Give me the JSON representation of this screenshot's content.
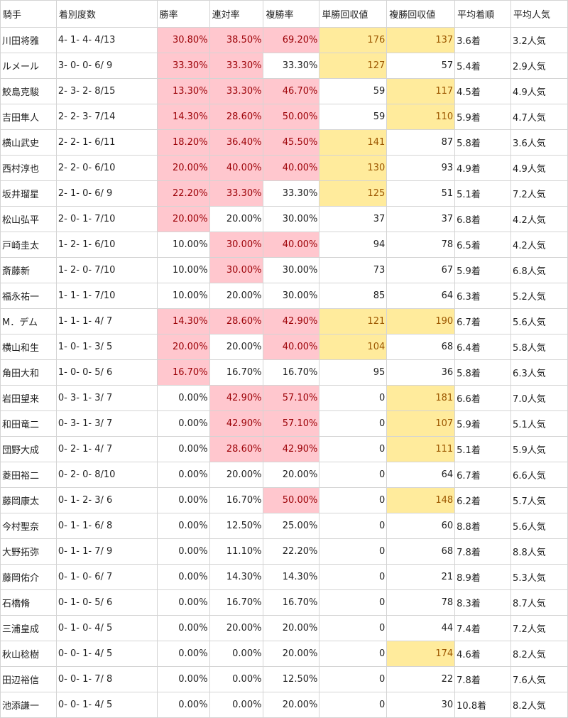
{
  "headers": [
    "騎手",
    "着別度数",
    "勝率",
    "連対率",
    "複勝率",
    "単勝回収値",
    "複勝回収値",
    "平均着順",
    "平均人気"
  ],
  "colors": {
    "pink_fill": "#ffc7ce",
    "pink_text": "#9c0006",
    "yellow_fill": "#ffeb9c",
    "yellow_text": "#9c5700"
  },
  "rows": [
    {
      "jockey": "川田将雅",
      "record": "4- 1- 4- 4/13",
      "win": "30.80%",
      "place2": "38.50%",
      "place3": "69.20%",
      "win_ret": "176",
      "show_ret": "137",
      "avg_finish": "3.6着",
      "avg_pop": "3.2人気",
      "hl": {
        "win": "pink",
        "place2": "pink",
        "place3": "pink",
        "win_ret": "yel",
        "show_ret": "yel"
      }
    },
    {
      "jockey": "ルメール",
      "record": "3- 0- 0- 6/ 9",
      "win": "33.30%",
      "place2": "33.30%",
      "place3": "33.30%",
      "win_ret": "127",
      "show_ret": "57",
      "avg_finish": "5.4着",
      "avg_pop": "2.9人気",
      "hl": {
        "win": "pink",
        "place2": "pink",
        "win_ret": "yel"
      }
    },
    {
      "jockey": "鮫島克駿",
      "record": "2- 3- 2- 8/15",
      "win": "13.30%",
      "place2": "33.30%",
      "place3": "46.70%",
      "win_ret": "59",
      "show_ret": "117",
      "avg_finish": "4.5着",
      "avg_pop": "4.9人気",
      "hl": {
        "win": "pink",
        "place2": "pink",
        "place3": "pink",
        "show_ret": "yel"
      }
    },
    {
      "jockey": "吉田隼人",
      "record": "2- 2- 3- 7/14",
      "win": "14.30%",
      "place2": "28.60%",
      "place3": "50.00%",
      "win_ret": "59",
      "show_ret": "110",
      "avg_finish": "5.9着",
      "avg_pop": "4.7人気",
      "hl": {
        "win": "pink",
        "place2": "pink",
        "place3": "pink",
        "show_ret": "yel"
      }
    },
    {
      "jockey": "横山武史",
      "record": "2- 2- 1- 6/11",
      "win": "18.20%",
      "place2": "36.40%",
      "place3": "45.50%",
      "win_ret": "141",
      "show_ret": "87",
      "avg_finish": "5.8着",
      "avg_pop": "3.6人気",
      "hl": {
        "win": "pink",
        "place2": "pink",
        "place3": "pink",
        "win_ret": "yel"
      }
    },
    {
      "jockey": "西村淳也",
      "record": "2- 2- 0- 6/10",
      "win": "20.00%",
      "place2": "40.00%",
      "place3": "40.00%",
      "win_ret": "130",
      "show_ret": "93",
      "avg_finish": "4.9着",
      "avg_pop": "4.9人気",
      "hl": {
        "win": "pink",
        "place2": "pink",
        "place3": "pink",
        "win_ret": "yel"
      }
    },
    {
      "jockey": "坂井瑠星",
      "record": "2- 1- 0- 6/ 9",
      "win": "22.20%",
      "place2": "33.30%",
      "place3": "33.30%",
      "win_ret": "125",
      "show_ret": "51",
      "avg_finish": "5.1着",
      "avg_pop": "7.2人気",
      "hl": {
        "win": "pink",
        "place2": "pink",
        "win_ret": "yel"
      }
    },
    {
      "jockey": "松山弘平",
      "record": "2- 0- 1- 7/10",
      "win": "20.00%",
      "place2": "20.00%",
      "place3": "30.00%",
      "win_ret": "37",
      "show_ret": "37",
      "avg_finish": "6.8着",
      "avg_pop": "4.2人気",
      "hl": {
        "win": "pink"
      }
    },
    {
      "jockey": "戸崎圭太",
      "record": "1- 2- 1- 6/10",
      "win": "10.00%",
      "place2": "30.00%",
      "place3": "40.00%",
      "win_ret": "94",
      "show_ret": "78",
      "avg_finish": "6.5着",
      "avg_pop": "4.2人気",
      "hl": {
        "place2": "pink",
        "place3": "pink"
      }
    },
    {
      "jockey": "斎藤新",
      "record": "1- 2- 0- 7/10",
      "win": "10.00%",
      "place2": "30.00%",
      "place3": "30.00%",
      "win_ret": "73",
      "show_ret": "67",
      "avg_finish": "5.9着",
      "avg_pop": "6.8人気",
      "hl": {
        "place2": "pink"
      }
    },
    {
      "jockey": "福永祐一",
      "record": "1- 1- 1- 7/10",
      "win": "10.00%",
      "place2": "20.00%",
      "place3": "30.00%",
      "win_ret": "85",
      "show_ret": "64",
      "avg_finish": "6.3着",
      "avg_pop": "5.2人気",
      "hl": {}
    },
    {
      "jockey": "M．デム",
      "record": "1- 1- 1- 4/ 7",
      "win": "14.30%",
      "place2": "28.60%",
      "place3": "42.90%",
      "win_ret": "121",
      "show_ret": "190",
      "avg_finish": "6.7着",
      "avg_pop": "5.6人気",
      "hl": {
        "win": "pink",
        "place2": "pink",
        "place3": "pink",
        "win_ret": "yel",
        "show_ret": "yel"
      }
    },
    {
      "jockey": "横山和生",
      "record": "1- 0- 1- 3/ 5",
      "win": "20.00%",
      "place2": "20.00%",
      "place3": "40.00%",
      "win_ret": "104",
      "show_ret": "68",
      "avg_finish": "6.4着",
      "avg_pop": "5.8人気",
      "hl": {
        "win": "pink",
        "place3": "pink",
        "win_ret": "yel"
      }
    },
    {
      "jockey": "角田大和",
      "record": "1- 0- 0- 5/ 6",
      "win": "16.70%",
      "place2": "16.70%",
      "place3": "16.70%",
      "win_ret": "95",
      "show_ret": "36",
      "avg_finish": "5.8着",
      "avg_pop": "6.3人気",
      "hl": {
        "win": "pink"
      }
    },
    {
      "jockey": "岩田望来",
      "record": "0- 3- 1- 3/ 7",
      "win": "0.00%",
      "place2": "42.90%",
      "place3": "57.10%",
      "win_ret": "0",
      "show_ret": "181",
      "avg_finish": "6.6着",
      "avg_pop": "7.0人気",
      "hl": {
        "place2": "pink",
        "place3": "pink",
        "show_ret": "yel"
      }
    },
    {
      "jockey": "和田竜二",
      "record": "0- 3- 1- 3/ 7",
      "win": "0.00%",
      "place2": "42.90%",
      "place3": "57.10%",
      "win_ret": "0",
      "show_ret": "107",
      "avg_finish": "5.9着",
      "avg_pop": "5.1人気",
      "hl": {
        "place2": "pink",
        "place3": "pink",
        "show_ret": "yel"
      }
    },
    {
      "jockey": "団野大成",
      "record": "0- 2- 1- 4/ 7",
      "win": "0.00%",
      "place2": "28.60%",
      "place3": "42.90%",
      "win_ret": "0",
      "show_ret": "111",
      "avg_finish": "5.1着",
      "avg_pop": "5.9人気",
      "hl": {
        "place2": "pink",
        "place3": "pink",
        "show_ret": "yel"
      }
    },
    {
      "jockey": "菱田裕二",
      "record": "0- 2- 0- 8/10",
      "win": "0.00%",
      "place2": "20.00%",
      "place3": "20.00%",
      "win_ret": "0",
      "show_ret": "64",
      "avg_finish": "6.7着",
      "avg_pop": "6.6人気",
      "hl": {}
    },
    {
      "jockey": "藤岡康太",
      "record": "0- 1- 2- 3/ 6",
      "win": "0.00%",
      "place2": "16.70%",
      "place3": "50.00%",
      "win_ret": "0",
      "show_ret": "148",
      "avg_finish": "6.2着",
      "avg_pop": "5.7人気",
      "hl": {
        "place3": "pink",
        "show_ret": "yel"
      }
    },
    {
      "jockey": "今村聖奈",
      "record": "0- 1- 1- 6/ 8",
      "win": "0.00%",
      "place2": "12.50%",
      "place3": "25.00%",
      "win_ret": "0",
      "show_ret": "60",
      "avg_finish": "8.8着",
      "avg_pop": "5.6人気",
      "hl": {}
    },
    {
      "jockey": "大野拓弥",
      "record": "0- 1- 1- 7/ 9",
      "win": "0.00%",
      "place2": "11.10%",
      "place3": "22.20%",
      "win_ret": "0",
      "show_ret": "68",
      "avg_finish": "7.8着",
      "avg_pop": "8.8人気",
      "hl": {}
    },
    {
      "jockey": "藤岡佑介",
      "record": "0- 1- 0- 6/ 7",
      "win": "0.00%",
      "place2": "14.30%",
      "place3": "14.30%",
      "win_ret": "0",
      "show_ret": "21",
      "avg_finish": "8.9着",
      "avg_pop": "5.3人気",
      "hl": {}
    },
    {
      "jockey": "石橋脩",
      "record": "0- 1- 0- 5/ 6",
      "win": "0.00%",
      "place2": "16.70%",
      "place3": "16.70%",
      "win_ret": "0",
      "show_ret": "78",
      "avg_finish": "8.3着",
      "avg_pop": "8.7人気",
      "hl": {}
    },
    {
      "jockey": "三浦皇成",
      "record": "0- 1- 0- 4/ 5",
      "win": "0.00%",
      "place2": "20.00%",
      "place3": "20.00%",
      "win_ret": "0",
      "show_ret": "44",
      "avg_finish": "7.4着",
      "avg_pop": "7.2人気",
      "hl": {}
    },
    {
      "jockey": "秋山稔樹",
      "record": "0- 0- 1- 4/ 5",
      "win": "0.00%",
      "place2": "0.00%",
      "place3": "20.00%",
      "win_ret": "0",
      "show_ret": "174",
      "avg_finish": "4.6着",
      "avg_pop": "8.2人気",
      "hl": {
        "show_ret": "yel"
      }
    },
    {
      "jockey": "田辺裕信",
      "record": "0- 0- 1- 7/ 8",
      "win": "0.00%",
      "place2": "0.00%",
      "place3": "12.50%",
      "win_ret": "0",
      "show_ret": "22",
      "avg_finish": "7.8着",
      "avg_pop": "7.6人気",
      "hl": {}
    },
    {
      "jockey": "池添謙一",
      "record": "0- 0- 1- 4/ 5",
      "win": "0.00%",
      "place2": "0.00%",
      "place3": "20.00%",
      "win_ret": "0",
      "show_ret": "30",
      "avg_finish": "10.8着",
      "avg_pop": "8.2人気",
      "hl": {}
    }
  ]
}
